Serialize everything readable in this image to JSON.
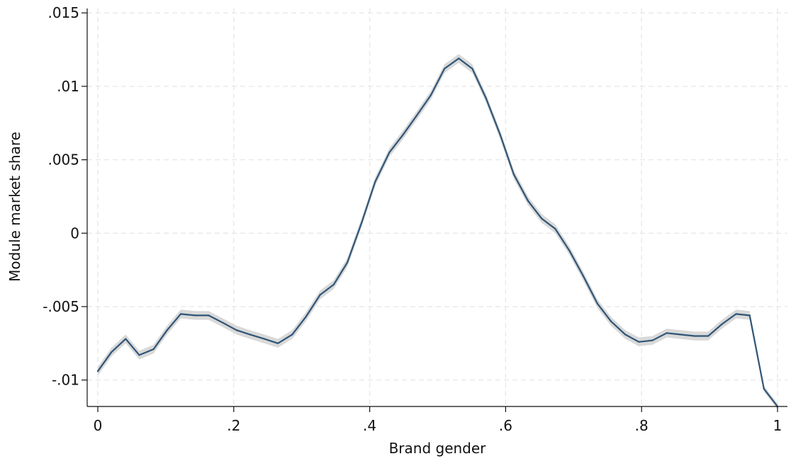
{
  "chart_data": {
    "type": "line",
    "xlabel": "Brand gender",
    "ylabel": "Module market share",
    "xlim": [
      0,
      1
    ],
    "ylim": [
      -0.0118,
      0.0153
    ],
    "grid": true,
    "legend": "none",
    "x_ticks": [
      {
        "value": 0,
        "label": "0"
      },
      {
        "value": 0.2,
        "label": ".2"
      },
      {
        "value": 0.4,
        "label": ".4"
      },
      {
        "value": 0.6,
        "label": ".6"
      },
      {
        "value": 0.8,
        "label": ".8"
      },
      {
        "value": 1,
        "label": "1"
      }
    ],
    "y_ticks": [
      {
        "value": -0.01,
        "label": "-.01"
      },
      {
        "value": -0.005,
        "label": "-.005"
      },
      {
        "value": 0,
        "label": "0"
      },
      {
        "value": 0.005,
        "label": ".005"
      },
      {
        "value": 0.01,
        "label": ".01"
      },
      {
        "value": 0.015,
        "label": ".015"
      }
    ],
    "colors": {
      "line": "#2f5577",
      "band": "#d9d9d9"
    },
    "series": [
      {
        "x": [
          0,
          0.02,
          0.041,
          0.061,
          0.082,
          0.102,
          0.122,
          0.143,
          0.163,
          0.184,
          0.204,
          0.224,
          0.245,
          0.265,
          0.286,
          0.306,
          0.327,
          0.347,
          0.367,
          0.388,
          0.408,
          0.429,
          0.449,
          0.469,
          0.49,
          0.51,
          0.531,
          0.551,
          0.571,
          0.592,
          0.612,
          0.633,
          0.653,
          0.673,
          0.694,
          0.714,
          0.735,
          0.755,
          0.776,
          0.796,
          0.816,
          0.837,
          0.857,
          0.878,
          0.898,
          0.918,
          0.939,
          0.959,
          0.98,
          1
        ],
        "y": [
          -0.0094,
          -0.0081,
          -0.0072,
          -0.0083,
          -0.0079,
          -0.0066,
          -0.0055,
          -0.0056,
          -0.0056,
          -0.0061,
          -0.0066,
          -0.0069,
          -0.0072,
          -0.0075,
          -0.0069,
          -0.0057,
          -0.0042,
          -0.0035,
          -0.002,
          0.0007,
          0.0035,
          0.0055,
          0.0067,
          0.008,
          0.0094,
          0.0112,
          0.0119,
          0.0112,
          0.0092,
          0.0067,
          0.004,
          0.0022,
          0.001,
          0.0003,
          -0.0012,
          -0.0029,
          -0.0048,
          -0.006,
          -0.0069,
          -0.0074,
          -0.0073,
          -0.0068,
          -0.0069,
          -0.007,
          -0.007,
          -0.0062,
          -0.0055,
          -0.0056,
          -0.0106,
          -0.0118
        ],
        "ci_halfwidth": [
          0.0003,
          0.0003,
          0.0003,
          0.0003,
          0.0003,
          0.0003,
          0.0003,
          0.0003,
          0.0003,
          0.0003,
          0.0003,
          0.0003,
          0.0003,
          0.0003,
          0.0003,
          0.0003,
          0.0003,
          0.0003,
          0.0003,
          0.0003,
          0.0003,
          0.0003,
          0.0003,
          0.0003,
          0.0003,
          0.0003,
          0.0003,
          0.0003,
          0.0003,
          0.0003,
          0.0003,
          0.0003,
          0.0003,
          0.0003,
          0.0003,
          0.0003,
          0.0003,
          0.0003,
          0.0003,
          0.0003,
          0.0003,
          0.0003,
          0.0003,
          0.0003,
          0.0003,
          0.0003,
          0.0003,
          0.0003,
          0.0002,
          0.0002
        ]
      }
    ]
  }
}
